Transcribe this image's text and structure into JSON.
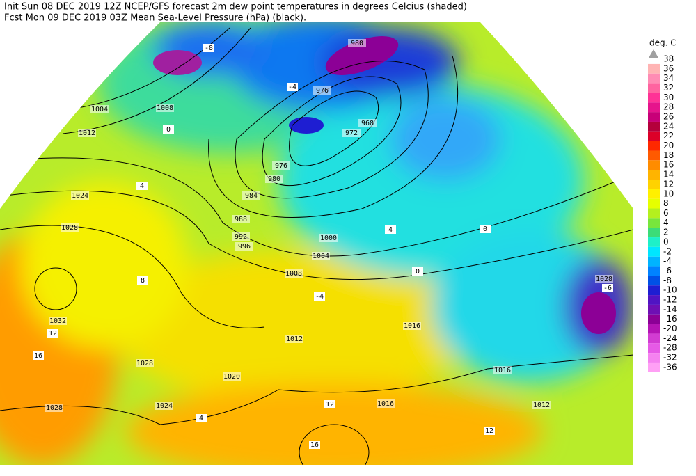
{
  "header": {
    "line1": "Init  Sun 08 DEC 2019 12Z  NCEP/GFS forecast 2m dew point temperatures in degrees Celcius (shaded)",
    "line2": "Fcst Mon 09 DEC 2019 03Z  Mean Sea-Level Pressure (hPa) (black)."
  },
  "legend": {
    "title": "deg. C",
    "entries": [
      {
        "label": "38",
        "color": "#a0a0a0"
      },
      {
        "label": "36",
        "color": "#ffb4b4"
      },
      {
        "label": "34",
        "color": "#ff8cb4"
      },
      {
        "label": "32",
        "color": "#ff64a0"
      },
      {
        "label": "30",
        "color": "#ff3296"
      },
      {
        "label": "28",
        "color": "#e6148c"
      },
      {
        "label": "26",
        "color": "#c80078"
      },
      {
        "label": "24",
        "color": "#b4003c"
      },
      {
        "label": "22",
        "color": "#dc0028"
      },
      {
        "label": "20",
        "color": "#ff2800"
      },
      {
        "label": "18",
        "color": "#ff5a00"
      },
      {
        "label": "16",
        "color": "#ff8c00"
      },
      {
        "label": "14",
        "color": "#ffb400"
      },
      {
        "label": "12",
        "color": "#ffd200"
      },
      {
        "label": "10",
        "color": "#fff000"
      },
      {
        "label": "8",
        "color": "#e6ff00"
      },
      {
        "label": "6",
        "color": "#b4f01e"
      },
      {
        "label": "4",
        "color": "#78e63c"
      },
      {
        "label": "2",
        "color": "#3cdc78"
      },
      {
        "label": "0",
        "color": "#1ef0c8"
      },
      {
        "label": "-2",
        "color": "#00e6ff"
      },
      {
        "label": "-4",
        "color": "#00b4ff"
      },
      {
        "label": "-6",
        "color": "#0082ff"
      },
      {
        "label": "-8",
        "color": "#0050e6"
      },
      {
        "label": "-10",
        "color": "#1e1ed2"
      },
      {
        "label": "-12",
        "color": "#5014c3"
      },
      {
        "label": "-14",
        "color": "#6e0fb4"
      },
      {
        "label": "-16",
        "color": "#8c0096"
      },
      {
        "label": "-20",
        "color": "#b414b4"
      },
      {
        "label": "-24",
        "color": "#d23cd2"
      },
      {
        "label": "-28",
        "color": "#e65ae6"
      },
      {
        "label": "-32",
        "color": "#f582f0"
      },
      {
        "label": "-36",
        "color": "#ffa0f5"
      }
    ]
  },
  "map": {
    "isobar_labels": [
      "1004",
      "1008",
      "1012",
      "1024",
      "1028",
      "1032",
      "1028",
      "1028",
      "1024",
      "1020",
      "1016",
      "1016",
      "1016",
      "1012",
      "1012",
      "1008",
      "1004",
      "1000",
      "996",
      "992",
      "988",
      "984",
      "980",
      "976",
      "972",
      "968",
      "976",
      "980",
      "1028"
    ],
    "dewpoint_labels": [
      "-8",
      "-4",
      "0",
      "4",
      "8",
      "12",
      "16",
      "0",
      "4",
      "-4",
      "12",
      "4",
      "12",
      "16",
      "0",
      "-6"
    ]
  }
}
